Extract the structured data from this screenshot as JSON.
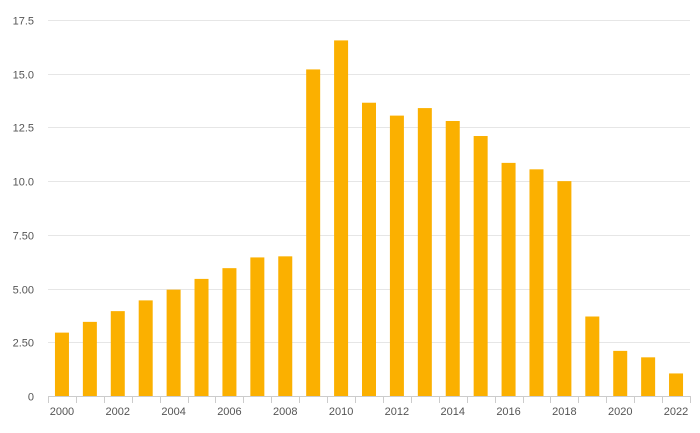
{
  "chart_data": {
    "type": "bar",
    "categories": [
      "2000",
      "2001",
      "2002",
      "2003",
      "2004",
      "2005",
      "2006",
      "2007",
      "2008",
      "2009",
      "2010",
      "2011",
      "2012",
      "2013",
      "2014",
      "2015",
      "2016",
      "2017",
      "2018",
      "2019",
      "2020",
      "2021",
      "2022"
    ],
    "x_tick_labels": [
      "2000",
      "2002",
      "2004",
      "2006",
      "2008",
      "2010",
      "2012",
      "2014",
      "2016",
      "2018",
      "2020",
      "2022"
    ],
    "values": [
      2.95,
      3.45,
      3.95,
      4.45,
      4.95,
      5.45,
      5.95,
      6.45,
      6.5,
      15.2,
      16.55,
      13.65,
      13.05,
      13.4,
      12.8,
      12.1,
      10.85,
      10.55,
      10.0,
      3.7,
      2.1,
      1.8,
      1.05
    ],
    "y_ticks": [
      0,
      2.5,
      5.0,
      7.5,
      10.0,
      12.5,
      15.0,
      17.5
    ],
    "y_tick_labels": [
      "0",
      "2.50",
      "5.00",
      "7.50",
      "10.0",
      "12.5",
      "15.0",
      "17.5"
    ],
    "ylim": [
      0,
      17.5
    ],
    "grid": true,
    "title": "",
    "xlabel": "",
    "ylabel": "",
    "bar_color": "#FBB000"
  }
}
